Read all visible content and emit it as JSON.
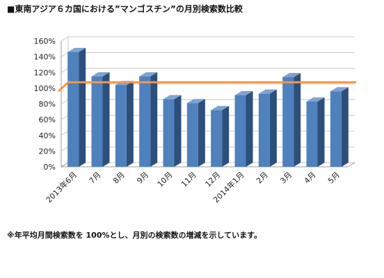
{
  "chart_data": {
    "type": "bar",
    "title": "■東南アジア６カ国における”マンゴスチン”の月別検索数比較",
    "categories": [
      "2013年6月",
      "7月",
      "8月",
      "9月",
      "10月",
      "11月",
      "12月",
      "2014年1月",
      "2月",
      "3月",
      "4月",
      "5月"
    ],
    "series": [
      {
        "values": [
          146,
          115,
          104,
          115,
          86,
          81,
          72,
          91,
          93,
          114,
          83,
          96
        ],
        "color": "#4f81bd"
      }
    ],
    "reference_line": {
      "value": 104,
      "color": "#f79646"
    },
    "ylim": [
      0,
      160
    ],
    "yticks": [
      "0%",
      "20%",
      "40%",
      "60%",
      "80%",
      "100%",
      "120%",
      "140%",
      "160%"
    ],
    "xlabel": "",
    "ylabel": "",
    "grid": true,
    "legend": "none"
  },
  "footnote": "※年平均月間検索数を 100%とし、月別の検索数の増減を示しています。"
}
